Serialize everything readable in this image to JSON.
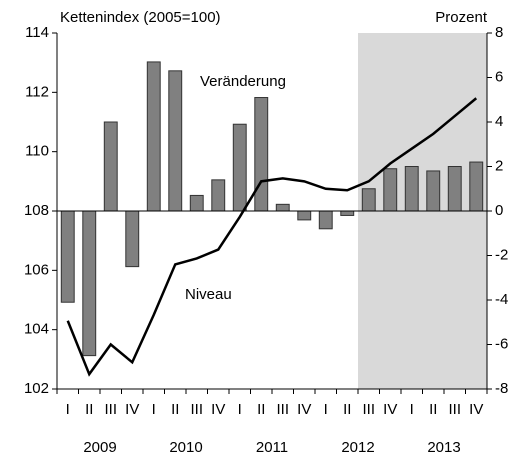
{
  "chart_data": {
    "type": "combo",
    "y_label": "Kettenindex (2005=100)",
    "y2_label": "Prozent",
    "categories": [
      "I",
      "II",
      "III",
      "IV",
      "I",
      "II",
      "III",
      "IV",
      "I",
      "II",
      "III",
      "IV",
      "I",
      "II",
      "III",
      "IV",
      "I",
      "II",
      "III",
      "IV"
    ],
    "x_groups": [
      "2009",
      "2010",
      "2011",
      "2012",
      "2013"
    ],
    "series": [
      {
        "name": "Veränderung",
        "type": "bar",
        "axis": "y2",
        "color": "#808080",
        "values": [
          -4.1,
          -6.5,
          4.0,
          -2.5,
          6.7,
          6.3,
          0.7,
          1.4,
          3.9,
          5.1,
          0.3,
          -0.4,
          -0.8,
          -0.2,
          1.0,
          1.9,
          2.0,
          1.8,
          2.0,
          2.2
        ]
      },
      {
        "name": "Niveau",
        "type": "line",
        "axis": "y",
        "color": "#000000",
        "values": [
          104.3,
          102.5,
          103.5,
          102.9,
          104.5,
          106.2,
          106.4,
          106.7,
          107.8,
          109.0,
          109.1,
          109.0,
          108.75,
          108.7,
          109.0,
          109.6,
          110.1,
          110.6,
          111.2,
          111.8
        ]
      }
    ],
    "ylim": [
      102,
      114
    ],
    "yticks": [
      102,
      104,
      106,
      108,
      110,
      112,
      114
    ],
    "y2lim": [
      -8,
      8
    ],
    "y2ticks": [
      -8,
      -6,
      -4,
      -2,
      0,
      2,
      4,
      6,
      8
    ],
    "shaded_from_index": 14,
    "shade_color": "#d9d9d9"
  }
}
